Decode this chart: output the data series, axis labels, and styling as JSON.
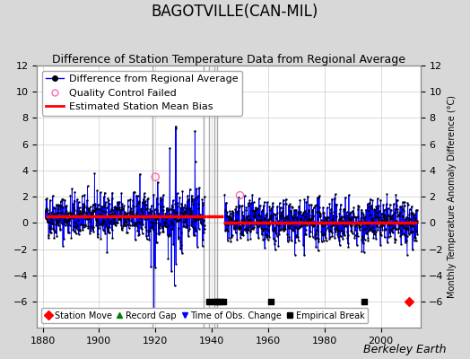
{
  "title": "BAGOTVILLE(CAN-MIL)",
  "subtitle": "Difference of Station Temperature Data from Regional Average",
  "ylabel_right": "Monthly Temperature Anomaly Difference (°C)",
  "xlim": [
    1878,
    2014
  ],
  "ylim": [
    -8,
    12
  ],
  "yticks_left": [
    -6,
    -4,
    -2,
    0,
    2,
    4,
    6,
    8,
    10,
    12
  ],
  "yticks_right": [
    -6,
    -4,
    -2,
    0,
    2,
    4,
    6,
    8,
    10,
    12
  ],
  "xticks": [
    1880,
    1900,
    1920,
    1940,
    1960,
    1980,
    2000
  ],
  "bg_color": "#d8d8d8",
  "plot_bg_color": "#ffffff",
  "grid_color": "#cccccc",
  "line_color": "#0000ff",
  "marker_color": "#000000",
  "bias_color": "#ff0000",
  "seed": 42,
  "station_move_years": [
    2010
  ],
  "empirical_break_years": [
    1939,
    1941,
    1942,
    1943,
    1944,
    1961,
    1994
  ],
  "time_obs_change_years": [],
  "record_gap_years": [],
  "vline_years": [
    1919,
    1937,
    1939,
    1941,
    1942
  ],
  "qc_fail_points": [
    [
      1920,
      3.5
    ],
    [
      1950,
      2.1
    ]
  ],
  "data_start": 1881,
  "data_end": 2013,
  "bias_segments": [
    {
      "start": 1881,
      "end": 1938,
      "value": 0.5
    },
    {
      "start": 1938,
      "end": 1944,
      "value": 0.5
    },
    {
      "start": 1944,
      "end": 2013,
      "value": 0.0
    }
  ],
  "title_fontsize": 12,
  "subtitle_fontsize": 9,
  "tick_fontsize": 8,
  "legend_fontsize": 8,
  "watermark": "Berkeley Earth",
  "watermark_fontsize": 9
}
